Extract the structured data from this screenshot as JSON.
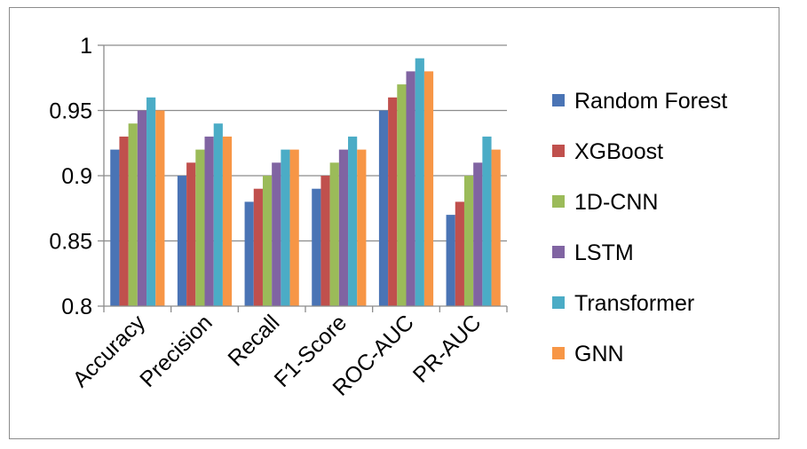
{
  "chart_data": {
    "type": "bar",
    "categories": [
      "Accuracy",
      "Precision",
      "Recall",
      "F1-Score",
      "ROC-AUC",
      "PR-AUC"
    ],
    "series": [
      {
        "name": "Random Forest",
        "color": "#4a74b5",
        "values": [
          0.92,
          0.9,
          0.88,
          0.89,
          0.95,
          0.87
        ]
      },
      {
        "name": "XGBoost",
        "color": "#c0504d",
        "values": [
          0.93,
          0.91,
          0.89,
          0.9,
          0.96,
          0.88
        ]
      },
      {
        "name": "1D-CNN",
        "color": "#9bbb59",
        "values": [
          0.94,
          0.92,
          0.9,
          0.91,
          0.97,
          0.9
        ]
      },
      {
        "name": "LSTM",
        "color": "#8064a2",
        "values": [
          0.95,
          0.93,
          0.91,
          0.92,
          0.98,
          0.91
        ]
      },
      {
        "name": "Transformer",
        "color": "#4bacc6",
        "values": [
          0.96,
          0.94,
          0.92,
          0.93,
          0.99,
          0.93
        ]
      },
      {
        "name": "GNN",
        "color": "#f79646",
        "values": [
          0.95,
          0.93,
          0.92,
          0.92,
          0.98,
          0.92
        ]
      }
    ],
    "yticks": [
      "0.8",
      "0.85",
      "0.9",
      "0.95",
      "1"
    ],
    "ylim": [
      0.8,
      1.0
    ],
    "grid": true,
    "legend_position": "right",
    "title": "",
    "xlabel": "",
    "ylabel": ""
  }
}
